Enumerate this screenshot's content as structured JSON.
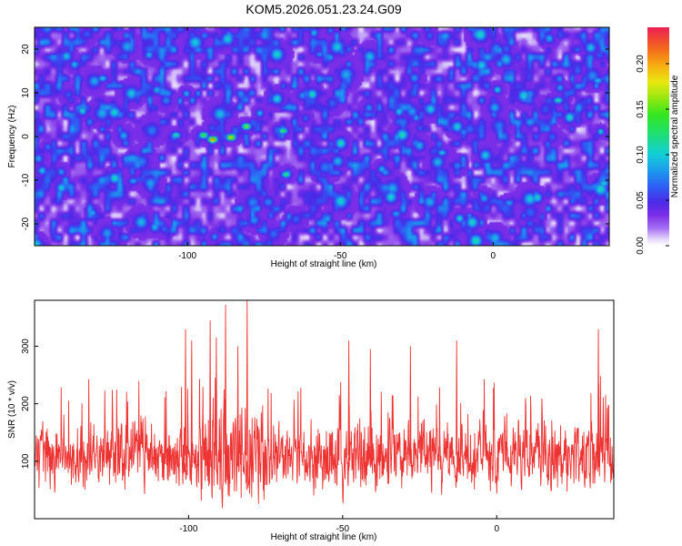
{
  "title": "KOM5.2026.051.23.24.G09",
  "chart_data": [
    {
      "type": "heatmap",
      "xlabel": "Height of straight line (km)",
      "ylabel": "Frequency (Hz)",
      "xlim": [
        -150,
        38
      ],
      "ylim": [
        -25,
        25
      ],
      "xticks": [
        -100,
        -50,
        0
      ],
      "yticks": [
        -20,
        -10,
        0,
        10,
        20
      ],
      "colorbar": {
        "label": "Normalized spectral amplitude",
        "range": [
          0.0,
          0.24
        ],
        "ticks": [
          0.0,
          0.05,
          0.1,
          0.15,
          0.2
        ],
        "tick_labels": [
          "0.00",
          "0.05",
          "0.10",
          "0.15",
          "0.20"
        ]
      },
      "background_level": 0.01,
      "hotspots": [
        {
          "x": -92,
          "y": -0.5,
          "value": 0.22
        },
        {
          "x": -86,
          "y": 0.0,
          "value": 0.2
        },
        {
          "x": -81,
          "y": 2.5,
          "value": 0.16
        },
        {
          "x": -95,
          "y": 0.5,
          "value": 0.15
        },
        {
          "x": -69,
          "y": 1.5,
          "value": 0.14
        },
        {
          "x": -68,
          "y": -8.5,
          "value": 0.13
        },
        {
          "x": -104,
          "y": 0.5,
          "value": 0.12
        },
        {
          "x": 21,
          "y": 8.5,
          "value": 0.12
        },
        {
          "x": 36,
          "y": -10.5,
          "value": 0.11
        },
        {
          "x": -128,
          "y": 13.5,
          "value": 0.1
        },
        {
          "x": -17,
          "y": -3.5,
          "value": 0.1
        },
        {
          "x": 34,
          "y": 13.0,
          "value": 0.1
        },
        {
          "x": -32,
          "y": -17.5,
          "value": 0.09
        },
        {
          "x": 5,
          "y": -15.0,
          "value": 0.09
        },
        {
          "x": -118,
          "y": -10.0,
          "value": 0.09
        },
        {
          "x": -57,
          "y": 19.0,
          "value": 0.08
        }
      ]
    },
    {
      "type": "line",
      "xlabel": "Height of straight line (km)",
      "ylabel": "SNR (10 * v/v)",
      "xlim": [
        -150,
        38
      ],
      "ylim": [
        0,
        380
      ],
      "xticks": [
        -100,
        -50,
        0
      ],
      "yticks": [
        100,
        200,
        300
      ],
      "color": "#ee3333",
      "n_points": 1700,
      "baseline": 110,
      "peak_region": {
        "x": [
          -96,
          -75
        ],
        "max": 380
      },
      "notable_peaks": [
        {
          "x": -101,
          "y": 330
        },
        {
          "x": -99,
          "y": 310
        },
        {
          "x": -93,
          "y": 345
        },
        {
          "x": -91,
          "y": 315
        },
        {
          "x": -88,
          "y": 372
        },
        {
          "x": -84,
          "y": 300
        },
        {
          "x": -81,
          "y": 380
        },
        {
          "x": -48,
          "y": 310
        },
        {
          "x": -41,
          "y": 295
        },
        {
          "x": -28,
          "y": 300
        },
        {
          "x": -13,
          "y": 310
        },
        {
          "x": 33,
          "y": 330
        }
      ]
    }
  ]
}
